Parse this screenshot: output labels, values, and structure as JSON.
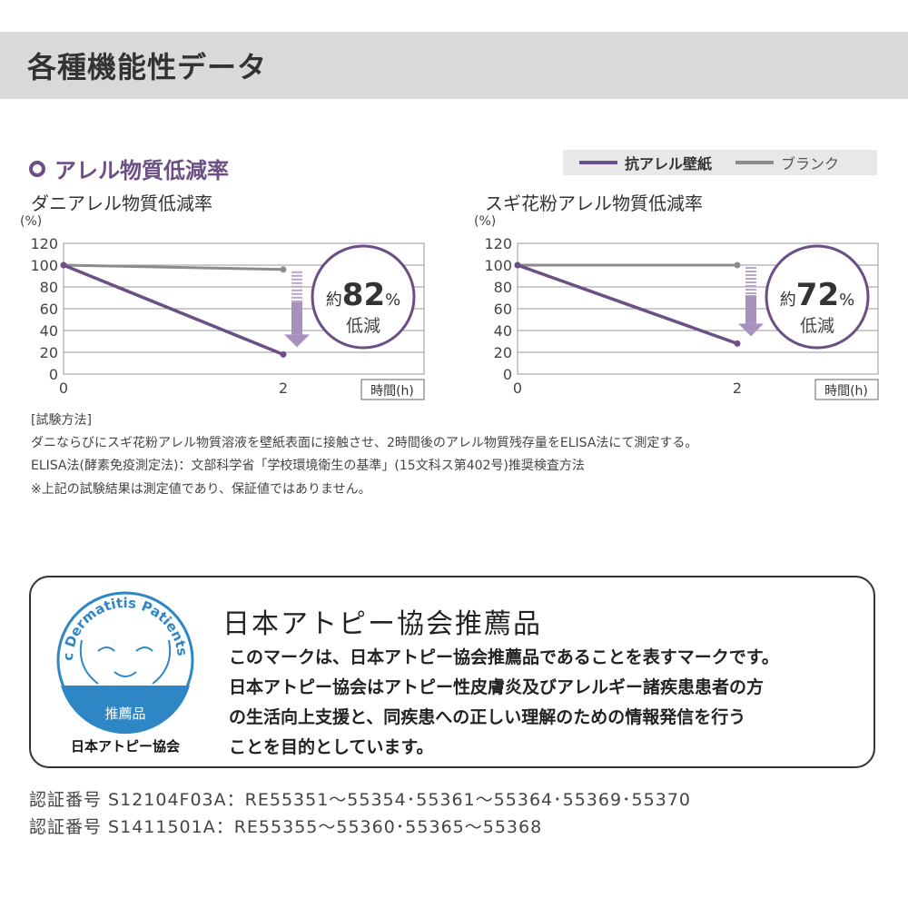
{
  "header": {
    "title": "各種機能性データ"
  },
  "section": {
    "title": "アレル物質低減率"
  },
  "legend": {
    "items": [
      {
        "label": "抗アレル壁紙",
        "color": "#6b4f86"
      },
      {
        "label": "ブランク",
        "color": "#8c8c8c"
      }
    ]
  },
  "chart_data": [
    {
      "type": "line",
      "title": "ダニアレル物質低減率",
      "ylabel": "(%)",
      "xlabel": "時間(h)",
      "x": [
        0,
        2
      ],
      "xticks": [
        "0",
        "2"
      ],
      "yticks": [
        "0",
        "20",
        "40",
        "60",
        "80",
        "100",
        "120"
      ],
      "ylim": [
        0,
        120
      ],
      "grid": true,
      "series": [
        {
          "name": "抗アレル壁紙",
          "values": [
            100,
            18
          ],
          "color": "#6b4f86"
        },
        {
          "name": "ブランク",
          "values": [
            100,
            96
          ],
          "color": "#8c8c8c"
        }
      ],
      "annotation": {
        "prefix": "約",
        "value": "82",
        "unit": "%",
        "text": "低減"
      }
    },
    {
      "type": "line",
      "title": "スギ花粉アレル物質低減率",
      "ylabel": "(%)",
      "xlabel": "時間(h)",
      "x": [
        0,
        2
      ],
      "xticks": [
        "0",
        "2"
      ],
      "yticks": [
        "0",
        "20",
        "40",
        "60",
        "80",
        "100",
        "120"
      ],
      "ylim": [
        0,
        120
      ],
      "grid": true,
      "series": [
        {
          "name": "抗アレル壁紙",
          "values": [
            100,
            28
          ],
          "color": "#6b4f86"
        },
        {
          "name": "ブランク",
          "values": [
            100,
            100
          ],
          "color": "#8c8c8c"
        }
      ],
      "annotation": {
        "prefix": "約",
        "value": "72",
        "unit": "%",
        "text": "低減"
      }
    }
  ],
  "method": {
    "heading": "[試験方法]",
    "lines": [
      "ダニならびにスギ花粉アレル物質溶液を壁紙表面に接触させ、2時間後のアレル物質残存量をELISA法にて測定する。",
      "ELISA法(酵素免疫測定法)：文部科学省「学校環境衛生の基準」(15文科ス第402号)推奨検査方法",
      "※上記の試験結果は測定値であり、保証値ではありません。"
    ]
  },
  "badge": {
    "logo_text": "Japan Atopic Dermatitis Patients Association",
    "logo_label": "推薦品",
    "logo_org": "日本アトピー協会",
    "title": "日本アトピー協会推薦品",
    "body": [
      "このマークは、日本アトピー協会推薦品であることを表すマークです。",
      "日本アトピー協会はアトピー性皮膚炎及びアレルギー諸疾患患者の方",
      "の生活向上支援と、同疾患への正しい理解のための情報発信を行う",
      "ことを目的としています。"
    ],
    "color": "#2f86c4"
  },
  "certs": [
    "認証番号 S12104F03A：RE55351〜55354･55361〜55364･55369･55370",
    "認証番号 S1411501A：RE55355〜55360･55365〜55368"
  ]
}
